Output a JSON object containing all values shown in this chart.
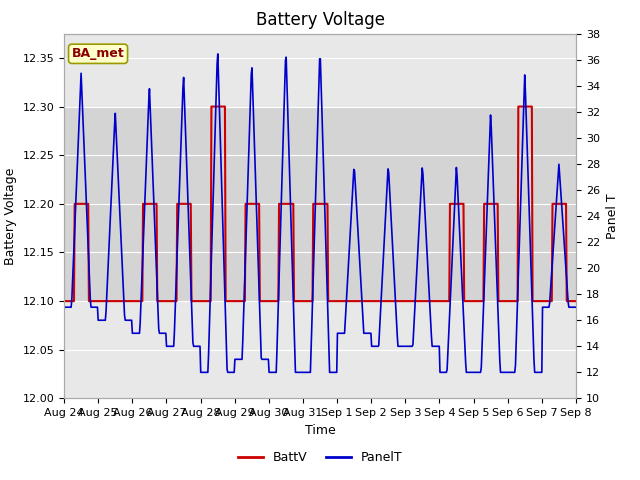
{
  "title": "Battery Voltage",
  "xlabel": "Time",
  "ylabel_left": "Battery Voltage",
  "ylabel_right": "Panel T",
  "annotation": "BA_met",
  "ylim_left": [
    12.0,
    12.375
  ],
  "ylim_right": [
    10,
    38
  ],
  "yticks_left": [
    12.0,
    12.05,
    12.1,
    12.15,
    12.2,
    12.25,
    12.3,
    12.35
  ],
  "yticks_right": [
    10,
    12,
    14,
    16,
    18,
    20,
    22,
    24,
    26,
    28,
    30,
    32,
    34,
    36,
    38
  ],
  "x_tick_labels": [
    "Aug 24",
    "Aug 25",
    "Aug 26",
    "Aug 27",
    "Aug 28",
    "Aug 29",
    "Aug 30",
    "Aug 31",
    "Sep 1",
    "Sep 2",
    "Sep 3",
    "Sep 4",
    "Sep 5",
    "Sep 6",
    "Sep 7",
    "Sep 8"
  ],
  "batt_color": "#cc0000",
  "panel_color": "#0000cc",
  "bg_color": "#ffffff",
  "plot_bg": "#e8e8e8",
  "band_lo": 12.1,
  "band_hi": 12.3,
  "band_color": "#c8c8c8",
  "legend_batt": "BattV",
  "legend_panel": "PanelT",
  "title_fontsize": 12,
  "label_fontsize": 9,
  "tick_fontsize": 8,
  "n_days": 15,
  "batt_day_peaks": [
    12.2,
    12.1,
    12.2,
    12.2,
    12.3,
    12.2,
    12.2,
    12.2,
    12.1,
    12.1,
    12.1,
    12.2,
    12.2,
    12.3,
    12.2
  ],
  "panel_max_temps": [
    35,
    32,
    34,
    35,
    37,
    36,
    37,
    37,
    28,
    28,
    28,
    28,
    32,
    35,
    28
  ],
  "panel_min_temps": [
    17,
    16,
    15,
    14,
    12,
    13,
    12,
    12,
    15,
    14,
    14,
    12,
    12,
    12,
    17
  ]
}
